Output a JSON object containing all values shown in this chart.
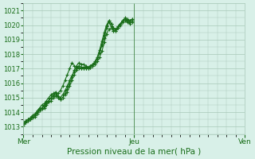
{
  "bg_color": "#d8f0e8",
  "grid_color": "#a8c8b8",
  "line_color": "#1a6e1a",
  "marker_color": "#1a6e1a",
  "xlabel": "Pression niveau de la mer( hPa )",
  "xtick_labels": [
    "Mer",
    "Jeu",
    "Ven"
  ],
  "xtick_positions": [
    0,
    48,
    96
  ],
  "ylim": [
    1012.5,
    1021.5
  ],
  "yticks": [
    1013,
    1014,
    1015,
    1016,
    1017,
    1018,
    1019,
    1020,
    1021
  ],
  "series": [
    [
      1013.2,
      1013.4,
      1013.5,
      1013.6,
      1013.7,
      1013.8,
      1014.0,
      1014.2,
      1014.3,
      1014.5,
      1014.7,
      1014.8,
      1015.0,
      1015.2,
      1015.3,
      1015.1,
      1015.0,
      1015.2,
      1015.5,
      1015.8,
      1016.2,
      1016.5,
      1016.8,
      1017.0,
      1017.2,
      1017.1,
      1017.1,
      1017.1,
      1017.1,
      1017.2,
      1017.2,
      1017.3,
      1017.5,
      1017.8,
      1018.2,
      1018.8,
      1019.4,
      1019.7,
      1019.8,
      1019.6,
      1019.6,
      1019.8,
      1020.1,
      1020.3,
      1020.4,
      1020.3,
      1020.2,
      1020.3
    ],
    [
      1013.2,
      1013.4,
      1013.5,
      1013.6,
      1013.8,
      1013.9,
      1014.1,
      1014.3,
      1014.5,
      1014.6,
      1014.8,
      1015.0,
      1015.2,
      1015.3,
      1015.4,
      1015.0,
      1014.9,
      1015.0,
      1015.2,
      1015.4,
      1015.8,
      1016.2,
      1016.6,
      1016.9,
      1017.1,
      1017.0,
      1017.0,
      1017.0,
      1017.0,
      1017.1,
      1017.2,
      1017.4,
      1017.7,
      1018.1,
      1018.6,
      1019.1,
      1019.8,
      1020.2,
      1019.9,
      1019.6,
      1019.6,
      1019.8,
      1020.0,
      1020.2,
      1020.3,
      1020.2,
      1020.1,
      1020.2
    ],
    [
      1013.1,
      1013.3,
      1013.4,
      1013.5,
      1013.7,
      1013.8,
      1014.0,
      1014.2,
      1014.3,
      1014.4,
      1014.6,
      1014.8,
      1015.0,
      1015.1,
      1015.2,
      1015.0,
      1014.9,
      1015.0,
      1015.3,
      1015.6,
      1016.0,
      1016.4,
      1016.9,
      1017.2,
      1017.4,
      1017.3,
      1017.3,
      1017.2,
      1017.1,
      1017.2,
      1017.3,
      1017.4,
      1017.7,
      1018.1,
      1018.7,
      1019.3,
      1019.9,
      1020.3,
      1020.1,
      1019.8,
      1019.7,
      1019.9,
      1020.1,
      1020.3,
      1020.4,
      1020.3,
      1020.3,
      1020.4
    ],
    [
      1013.2,
      1013.3,
      1013.4,
      1013.5,
      1013.6,
      1013.7,
      1013.9,
      1014.1,
      1014.2,
      1014.3,
      1014.5,
      1014.7,
      1014.8,
      1015.0,
      1015.1,
      1015.3,
      1015.5,
      1015.8,
      1016.2,
      1016.6,
      1017.0,
      1017.4,
      1017.2,
      1017.1,
      1017.0,
      1017.0,
      1017.0,
      1017.0,
      1017.0,
      1017.1,
      1017.3,
      1017.5,
      1017.8,
      1018.3,
      1018.9,
      1019.5,
      1020.0,
      1020.3,
      1020.1,
      1019.8,
      1019.7,
      1019.9,
      1020.1,
      1020.3,
      1020.5,
      1020.4,
      1020.3,
      1020.4
    ]
  ],
  "n_points": 48
}
